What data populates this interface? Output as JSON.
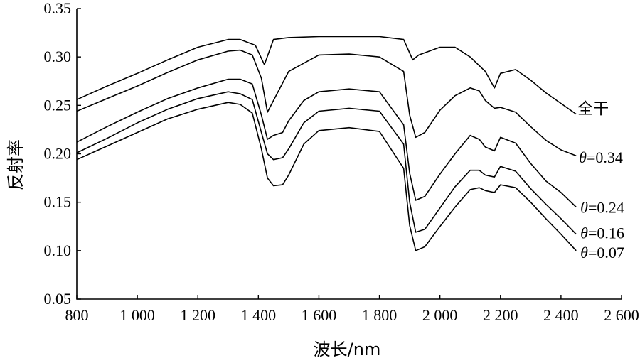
{
  "chart_data": {
    "type": "line",
    "xlabel": "波长/nm",
    "ylabel": "反射率",
    "xlim": [
      800,
      2600
    ],
    "ylim": [
      0.05,
      0.35
    ],
    "x_ticks": [
      800,
      1000,
      1200,
      1400,
      1600,
      1800,
      2000,
      2200,
      2400,
      2600
    ],
    "x_tick_labels": [
      "800",
      "1 000",
      "1 200",
      "1 400",
      "1 600",
      "1 800",
      "2 000",
      "2 200",
      "2 400",
      "2 600"
    ],
    "y_ticks": [
      0.05,
      0.1,
      0.15,
      0.2,
      0.25,
      0.3,
      0.35
    ],
    "y_tick_labels": [
      "0.05",
      "0.10",
      "0.15",
      "0.20",
      "0.25",
      "0.30",
      "0.35"
    ],
    "grid": false,
    "legend": "inline labels at right end of each curve",
    "series": [
      {
        "name": "全干",
        "x": [
          800,
          900,
          1000,
          1100,
          1200,
          1300,
          1340,
          1390,
          1420,
          1450,
          1500,
          1600,
          1700,
          1800,
          1880,
          1910,
          1930,
          2000,
          2050,
          2100,
          2150,
          2180,
          2200,
          2250,
          2300,
          2350,
          2400,
          2450
        ],
        "y": [
          0.256,
          0.27,
          0.283,
          0.297,
          0.31,
          0.318,
          0.318,
          0.312,
          0.292,
          0.318,
          0.32,
          0.321,
          0.321,
          0.321,
          0.318,
          0.297,
          0.302,
          0.31,
          0.31,
          0.3,
          0.285,
          0.268,
          0.283,
          0.287,
          0.276,
          0.263,
          0.252,
          0.241
        ]
      },
      {
        "name": "θ=0.34",
        "x": [
          800,
          900,
          1000,
          1100,
          1200,
          1300,
          1340,
          1380,
          1410,
          1430,
          1450,
          1500,
          1600,
          1700,
          1800,
          1880,
          1900,
          1920,
          1950,
          2000,
          2050,
          2100,
          2130,
          2150,
          2180,
          2200,
          2250,
          2300,
          2350,
          2400,
          2450
        ],
        "y": [
          0.244,
          0.257,
          0.27,
          0.284,
          0.297,
          0.306,
          0.307,
          0.302,
          0.278,
          0.243,
          0.255,
          0.285,
          0.302,
          0.303,
          0.3,
          0.285,
          0.24,
          0.217,
          0.222,
          0.245,
          0.26,
          0.268,
          0.265,
          0.255,
          0.247,
          0.248,
          0.243,
          0.228,
          0.214,
          0.204,
          0.198
        ]
      },
      {
        "name": "θ=0.24",
        "x": [
          800,
          900,
          1000,
          1100,
          1200,
          1300,
          1340,
          1380,
          1410,
          1430,
          1450,
          1480,
          1500,
          1550,
          1600,
          1700,
          1800,
          1880,
          1900,
          1920,
          1950,
          2000,
          2050,
          2100,
          2130,
          2150,
          2180,
          2200,
          2250,
          2300,
          2350,
          2400,
          2450
        ],
        "y": [
          0.212,
          0.228,
          0.243,
          0.257,
          0.268,
          0.277,
          0.277,
          0.272,
          0.24,
          0.215,
          0.219,
          0.222,
          0.234,
          0.255,
          0.264,
          0.267,
          0.264,
          0.23,
          0.18,
          0.152,
          0.156,
          0.179,
          0.2,
          0.219,
          0.215,
          0.207,
          0.203,
          0.217,
          0.211,
          0.19,
          0.172,
          0.16,
          0.145
        ]
      },
      {
        "name": "θ=0.16",
        "x": [
          800,
          900,
          1000,
          1100,
          1200,
          1300,
          1340,
          1380,
          1410,
          1430,
          1450,
          1480,
          1500,
          1550,
          1600,
          1700,
          1800,
          1880,
          1900,
          1920,
          1950,
          2000,
          2050,
          2100,
          2130,
          2150,
          2180,
          2200,
          2250,
          2300,
          2350,
          2400,
          2450
        ],
        "y": [
          0.201,
          0.216,
          0.232,
          0.246,
          0.257,
          0.264,
          0.262,
          0.256,
          0.222,
          0.2,
          0.194,
          0.196,
          0.205,
          0.232,
          0.244,
          0.247,
          0.244,
          0.21,
          0.15,
          0.119,
          0.122,
          0.144,
          0.166,
          0.183,
          0.183,
          0.178,
          0.176,
          0.187,
          0.182,
          0.164,
          0.148,
          0.133,
          0.117
        ]
      },
      {
        "name": "θ=0.07",
        "x": [
          800,
          900,
          1000,
          1100,
          1200,
          1300,
          1340,
          1380,
          1410,
          1430,
          1450,
          1480,
          1500,
          1550,
          1600,
          1700,
          1800,
          1880,
          1900,
          1920,
          1950,
          2000,
          2050,
          2100,
          2130,
          2150,
          2180,
          2200,
          2250,
          2300,
          2350,
          2400,
          2450
        ],
        "y": [
          0.194,
          0.208,
          0.222,
          0.236,
          0.246,
          0.253,
          0.251,
          0.242,
          0.205,
          0.175,
          0.167,
          0.168,
          0.178,
          0.21,
          0.224,
          0.227,
          0.223,
          0.185,
          0.126,
          0.1,
          0.104,
          0.125,
          0.145,
          0.163,
          0.165,
          0.162,
          0.16,
          0.168,
          0.165,
          0.15,
          0.133,
          0.117,
          0.1
        ]
      }
    ]
  }
}
